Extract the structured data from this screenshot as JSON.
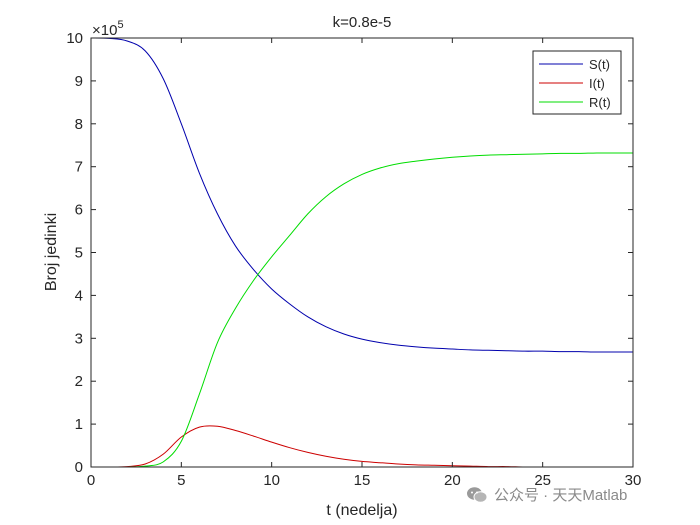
{
  "chart_data": {
    "type": "line",
    "title": "k=0.8e-5",
    "xlabel": "t (nedelja)",
    "ylabel": "Broj jedinki",
    "y_exponent_label": "×10",
    "y_exponent_power": "5",
    "xlim": [
      0,
      30
    ],
    "ylim": [
      0,
      10
    ],
    "x_ticks": [
      0,
      5,
      10,
      15,
      20,
      25,
      30
    ],
    "y_ticks": [
      0,
      1,
      2,
      3,
      4,
      5,
      6,
      7,
      8,
      9,
      10
    ],
    "grid": false,
    "legend_placement": "top-right",
    "x": [
      0,
      1,
      2,
      3,
      4,
      5,
      6,
      7,
      8,
      9,
      10,
      11,
      12,
      13,
      14,
      15,
      16,
      17,
      18,
      19,
      20,
      21,
      22,
      23,
      24,
      25,
      26,
      27,
      28,
      29,
      30
    ],
    "series": [
      {
        "name": "S(t)",
        "color": "#0000ad",
        "values": [
          10.0,
          9.99,
          9.93,
          9.7,
          9.05,
          8.0,
          6.85,
          5.9,
          5.15,
          4.6,
          4.15,
          3.8,
          3.5,
          3.27,
          3.1,
          2.98,
          2.9,
          2.84,
          2.8,
          2.77,
          2.75,
          2.73,
          2.72,
          2.71,
          2.7,
          2.7,
          2.69,
          2.69,
          2.68,
          2.68,
          2.68
        ]
      },
      {
        "name": "I(t)",
        "color": "#cc0000",
        "values": [
          0.0,
          0.0,
          0.01,
          0.07,
          0.3,
          0.7,
          0.93,
          0.95,
          0.85,
          0.72,
          0.58,
          0.45,
          0.34,
          0.25,
          0.18,
          0.13,
          0.1,
          0.07,
          0.05,
          0.04,
          0.03,
          0.02,
          0.01,
          0.01,
          0.0,
          0.0,
          0.0,
          0.0,
          0.0,
          0.0,
          0.0
        ]
      },
      {
        "name": "R(t)",
        "color": "#00dd00",
        "values": [
          0.0,
          0.0,
          0.0,
          0.02,
          0.12,
          0.6,
          1.7,
          2.9,
          3.7,
          4.35,
          4.9,
          5.4,
          5.9,
          6.3,
          6.6,
          6.82,
          6.97,
          7.07,
          7.13,
          7.18,
          7.22,
          7.25,
          7.27,
          7.28,
          7.29,
          7.3,
          7.31,
          7.31,
          7.32,
          7.32,
          7.32
        ]
      }
    ]
  },
  "watermark": {
    "text": "公众号 · 天天Matlab",
    "icon": "wechat-icon"
  }
}
